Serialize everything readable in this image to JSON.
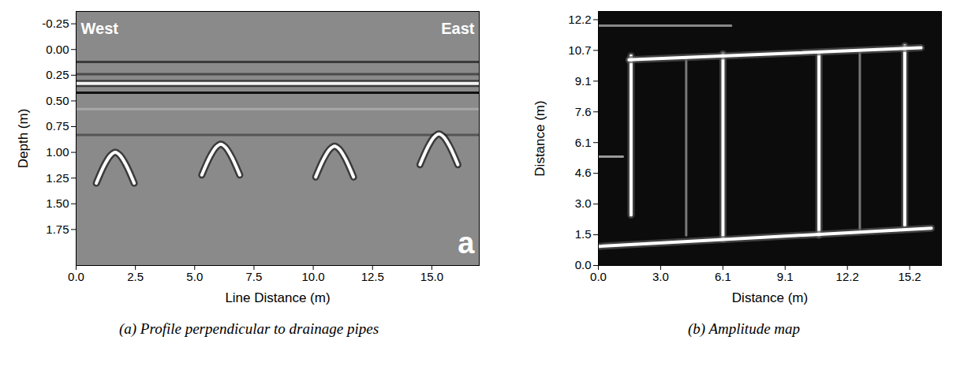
{
  "chart_data": [
    {
      "type": "line",
      "title": "(a) Profile perpendicular to drainage pipes",
      "annotations": [
        "West",
        "East",
        "a"
      ],
      "x_label": "Line Distance (m)",
      "y_label": "Depth (m)",
      "xlim": [
        0,
        17
      ],
      "xticks": [
        {
          "value": 0,
          "label": "0.0"
        },
        2.5,
        {
          "value": 5,
          "label": "5.0"
        },
        7.5,
        {
          "value": 10,
          "label": "10.0"
        },
        12.5,
        {
          "value": 15,
          "label": "15.0"
        }
      ],
      "ylim": [
        -0.37,
        2.1
      ],
      "yticks": [
        -0.25,
        {
          "value": 0,
          "label": "0.00"
        },
        0.25,
        {
          "value": 0.5,
          "label": "0.50"
        },
        0.75,
        {
          "value": 1,
          "label": "1.00"
        },
        1.25,
        {
          "value": 1.5,
          "label": "1.50"
        },
        1.75
      ],
      "grid": false,
      "series": [
        {
          "color": "#3a3a3a",
          "x": [
            0,
            17
          ],
          "values": [
            0.12,
            0.12
          ]
        },
        {
          "color": "#4a4a4a",
          "x": [
            0,
            17
          ],
          "values": [
            0.24,
            0.24
          ]
        },
        {
          "color": "#f2f2f2",
          "x": [
            0,
            17
          ],
          "values": [
            0.33,
            0.33
          ]
        },
        {
          "color": "#111111",
          "x": [
            0,
            17
          ],
          "values": [
            0.42,
            0.42
          ]
        },
        {
          "color": "#a8a8a8",
          "x": [
            0,
            17
          ],
          "values": [
            0.58,
            0.58
          ]
        },
        {
          "color": "#555555",
          "x": [
            0,
            17
          ],
          "values": [
            0.83,
            0.83
          ]
        },
        {
          "color": "#ffffff",
          "x": [
            0.85,
            1.2,
            1.45,
            1.65,
            1.85,
            2.1,
            2.45
          ],
          "values": [
            1.3,
            1.12,
            1.03,
            1.0,
            1.03,
            1.12,
            1.3
          ]
        },
        {
          "color": "#ffffff",
          "x": [
            5.3,
            5.65,
            5.9,
            6.1,
            6.3,
            6.55,
            6.9
          ],
          "values": [
            1.22,
            1.04,
            0.95,
            0.92,
            0.95,
            1.04,
            1.22
          ]
        },
        {
          "color": "#ffffff",
          "x": [
            10.1,
            10.45,
            10.7,
            10.9,
            11.1,
            11.35,
            11.7
          ],
          "values": [
            1.24,
            1.06,
            0.97,
            0.94,
            0.97,
            1.06,
            1.24
          ]
        },
        {
          "color": "#ffffff",
          "x": [
            14.5,
            14.85,
            15.1,
            15.3,
            15.5,
            15.75,
            16.1
          ],
          "values": [
            1.12,
            0.94,
            0.85,
            0.82,
            0.85,
            0.94,
            1.12
          ]
        }
      ]
    },
    {
      "type": "line",
      "title": "(b) Amplitude map",
      "x_label": "Distance (m)",
      "y_label": "Distance (m)",
      "xlim": [
        0,
        16.8
      ],
      "xticks": [
        {
          "value": 0,
          "label": "0.0"
        },
        {
          "value": 3.048,
          "label": "3.0"
        },
        {
          "value": 6.096,
          "label": "6.1"
        },
        {
          "value": 9.144,
          "label": "9.1"
        },
        {
          "value": 12.192,
          "label": "12.2"
        },
        {
          "value": 15.24,
          "label": "15.2"
        }
      ],
      "ylim": [
        0,
        12.6
      ],
      "yticks": [
        {
          "value": 0,
          "label": "0.0"
        },
        {
          "value": 1.524,
          "label": "1.5"
        },
        {
          "value": 3.048,
          "label": "3.0"
        },
        {
          "value": 4.572,
          "label": "4.6"
        },
        {
          "value": 6.096,
          "label": "6.1"
        },
        {
          "value": 7.62,
          "label": "7.6"
        },
        {
          "value": 9.144,
          "label": "9.1"
        },
        {
          "value": 10.668,
          "label": "10.7"
        },
        {
          "value": 12.192,
          "label": "12.2"
        }
      ],
      "grid": false,
      "series": [
        {
          "color": "#777777",
          "x": [
            4.3,
            4.3
          ],
          "values": [
            1.5,
            10.2
          ]
        },
        {
          "color": "#777777",
          "x": [
            12.8,
            12.8
          ],
          "values": [
            1.8,
            10.6
          ]
        },
        {
          "color": "#888888",
          "x": [
            0,
            6.5
          ],
          "values": [
            11.9,
            11.9
          ]
        },
        {
          "color": "#999999",
          "x": [
            0,
            1.2
          ],
          "values": [
            5.4,
            5.4
          ]
        },
        {
          "color": "#ffffff",
          "x": [
            1.6,
            1.6
          ],
          "values": [
            2.5,
            10.4
          ]
        },
        {
          "color": "#ffffff",
          "x": [
            6.1,
            6.1
          ],
          "values": [
            1.3,
            10.5
          ]
        },
        {
          "color": "#ffffff",
          "x": [
            10.8,
            10.8
          ],
          "values": [
            1.5,
            10.5
          ]
        },
        {
          "color": "#ffffff",
          "x": [
            15.0,
            15.0
          ],
          "values": [
            2.0,
            10.9
          ]
        },
        {
          "color": "#ffffff",
          "x": [
            1.5,
            15.8
          ],
          "values": [
            10.2,
            10.8
          ]
        },
        {
          "color": "#ffffff",
          "x": [
            0,
            16.3
          ],
          "values": [
            0.95,
            1.85
          ]
        }
      ]
    }
  ]
}
